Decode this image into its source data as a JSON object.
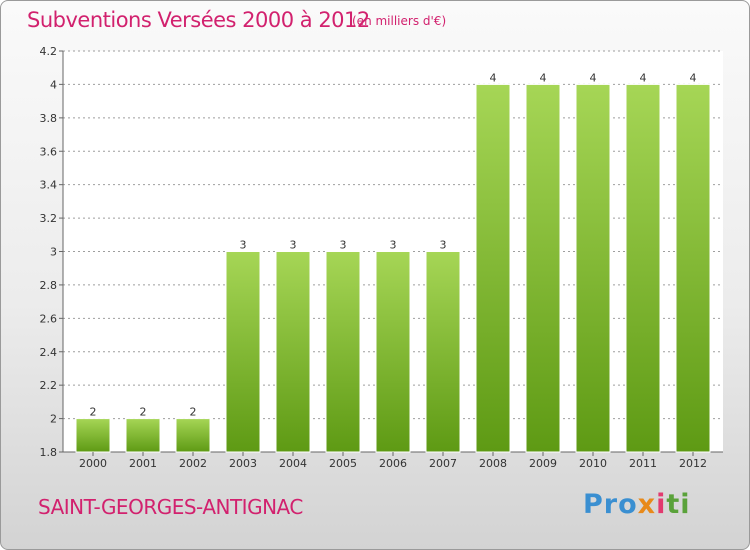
{
  "header": {
    "title": "Subventions Versées 2000 à 2012",
    "subtitle": "(en milliers d'€)"
  },
  "footer": {
    "commune": "SAINT-GEORGES-ANTIGNAC",
    "logo_parts": [
      "Pro",
      "x",
      "i",
      "ti"
    ]
  },
  "colors": {
    "accent": "#d2216e",
    "bar_top": "#a6d656",
    "bar_bottom": "#5e9a14",
    "grid": "#9e9e9e"
  },
  "chart_data": {
    "type": "bar",
    "title": "Subventions Versées 2000 à 2012",
    "subtitle": "(en milliers d'€)",
    "categories": [
      "2000",
      "2001",
      "2002",
      "2003",
      "2004",
      "2005",
      "2006",
      "2007",
      "2008",
      "2009",
      "2010",
      "2011",
      "2012"
    ],
    "values": [
      2,
      2,
      2,
      3,
      3,
      3,
      3,
      3,
      4,
      4,
      4,
      4,
      4
    ],
    "data_labels": [
      "2",
      "2",
      "2",
      "3",
      "3",
      "3",
      "3",
      "3",
      "4",
      "4",
      "4",
      "4",
      "4"
    ],
    "ylim": [
      1.8,
      4.2
    ],
    "yticks": [
      1.8,
      2,
      2.2,
      2.4,
      2.6,
      2.8,
      3,
      3.2,
      3.4,
      3.6,
      3.8,
      4,
      4.2
    ],
    "ytick_labels": [
      "1.8",
      "2",
      "2.2",
      "2.4",
      "2.6",
      "2.8",
      "3",
      "3.2",
      "3.4",
      "3.6",
      "3.8",
      "4",
      "4.2"
    ],
    "grid": "horizontal dashed",
    "xlabel": "",
    "ylabel": ""
  }
}
